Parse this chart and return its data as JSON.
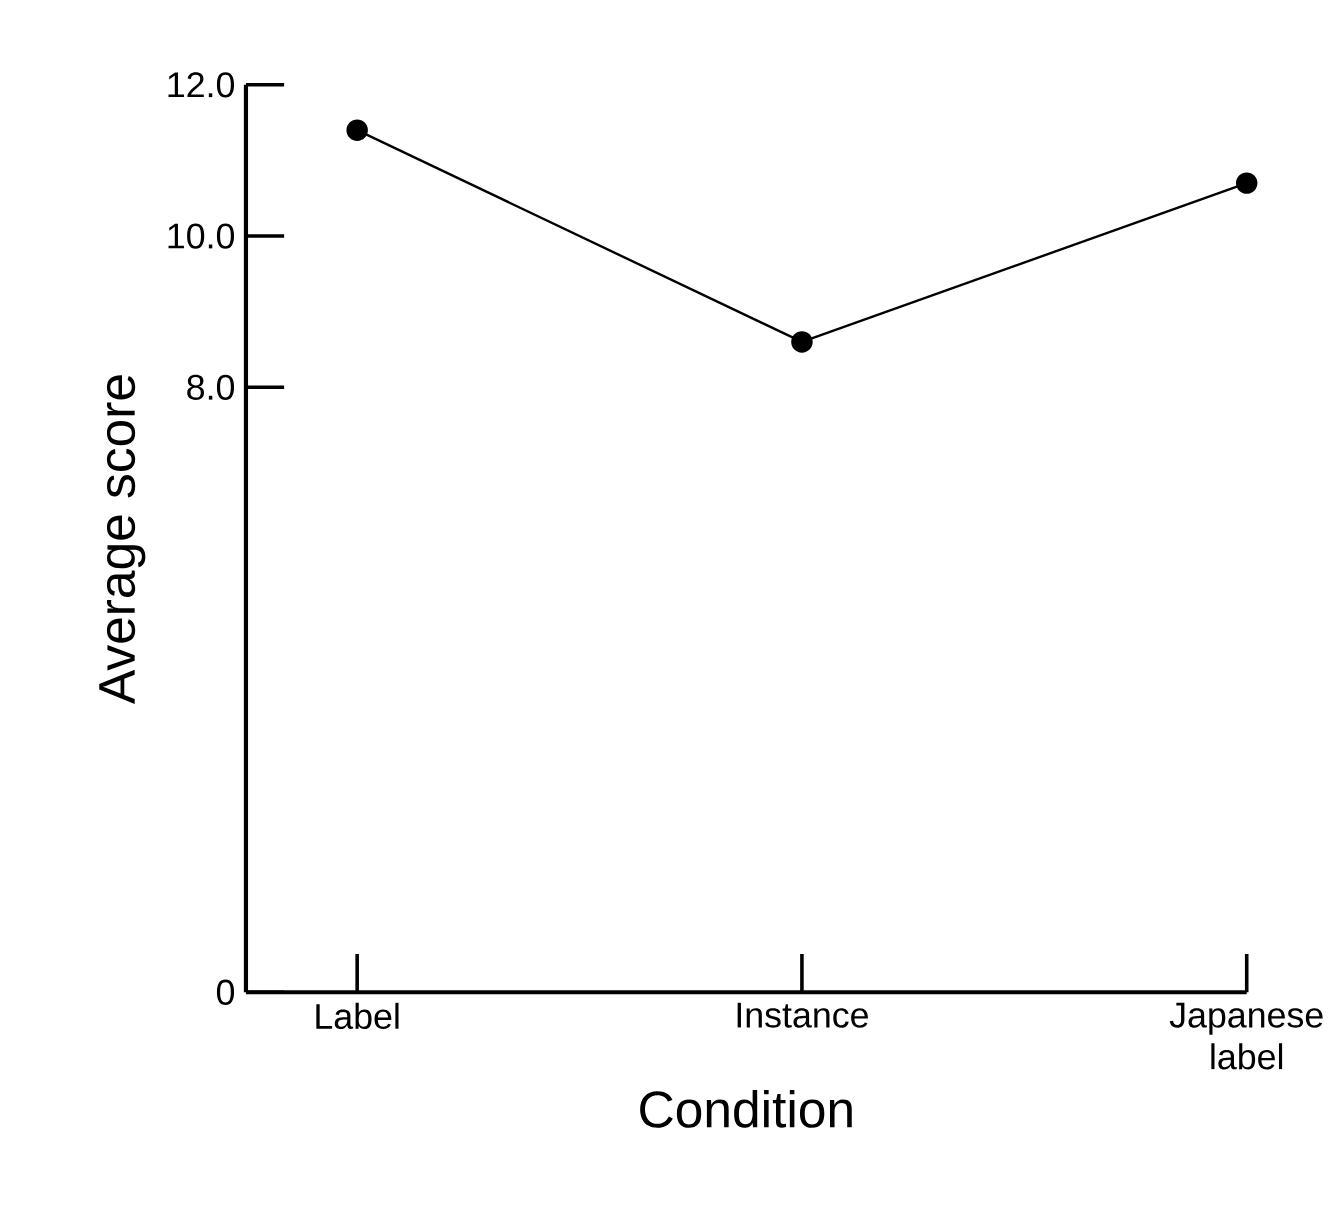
{
  "chart_data": {
    "type": "line",
    "xlabel": "Condition",
    "ylabel": "Average score",
    "categories": [
      "Label",
      "Instance",
      "Japanese label"
    ],
    "series": [
      {
        "color": "#000000",
        "values": [
          11.4,
          8.6,
          10.7
        ]
      }
    ],
    "ylim": [
      0,
      12
    ],
    "yticks": [
      0,
      {
        "value": 8,
        "label": "8.0"
      },
      {
        "value": 10,
        "label": "10.0"
      },
      {
        "value": 12,
        "label": "12.0"
      }
    ],
    "marker": "circle",
    "line_style": "solid"
  }
}
